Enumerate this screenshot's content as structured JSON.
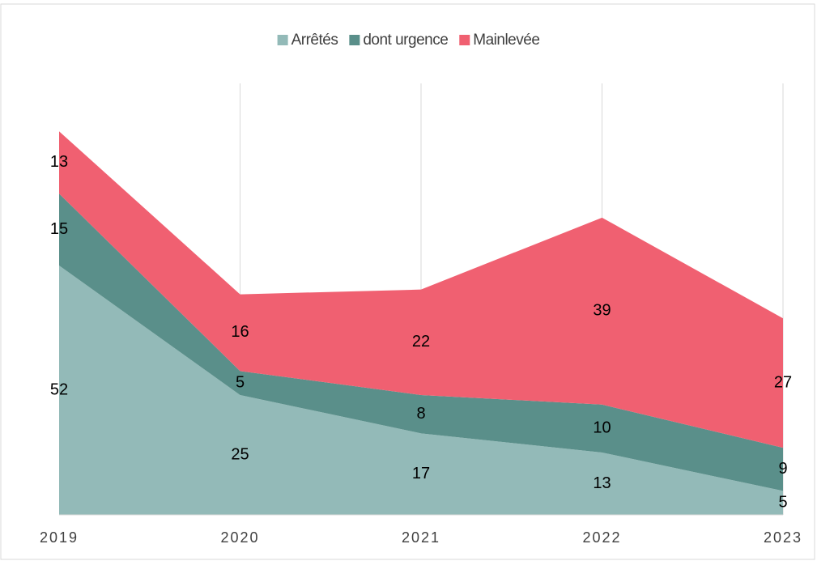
{
  "chart_data": {
    "type": "stacked_area",
    "categories": [
      "2019",
      "2020",
      "2021",
      "2022",
      "2023"
    ],
    "series": [
      {
        "name": "Arrêtés",
        "color": "#93bab8",
        "values": [
          52,
          25,
          17,
          13,
          5
        ]
      },
      {
        "name": "dont urgence",
        "color": "#5a8f8a",
        "values": [
          15,
          5,
          8,
          10,
          9
        ]
      },
      {
        "name": "Mainlevée",
        "color": "#f06071",
        "values": [
          13,
          16,
          22,
          39,
          27
        ]
      }
    ],
    "ylim": [
      0,
      90
    ],
    "grid": true,
    "legend": "top"
  }
}
